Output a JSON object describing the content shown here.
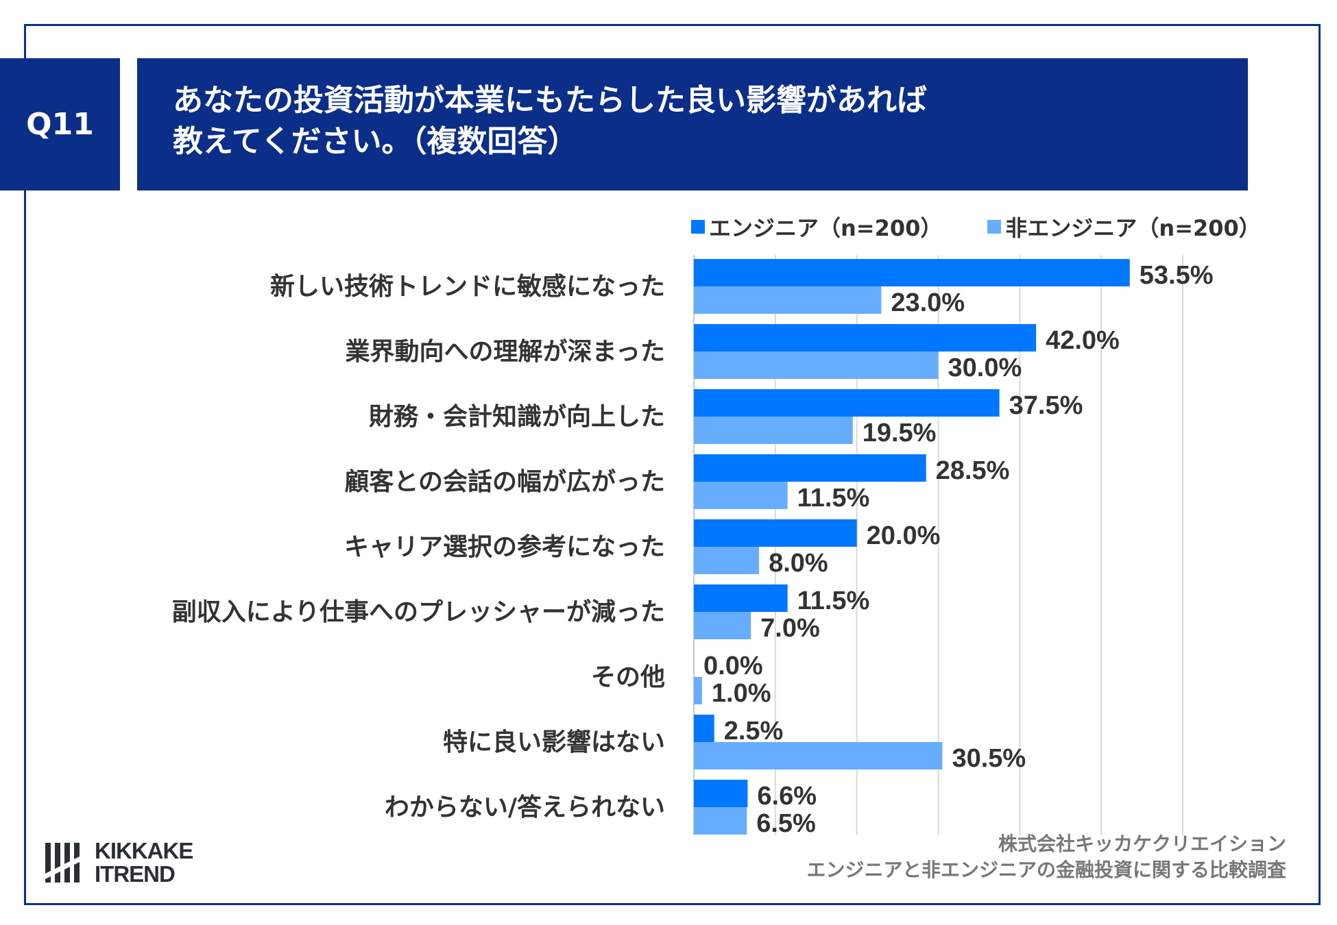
{
  "question_id": "Q11",
  "title": {
    "line1": "あなたの投資活動が本業にもたらした良い影響があれば",
    "line2": "教えてください。（複数回答）"
  },
  "colors": {
    "engineer": "#0077ff",
    "non_engineer": "#66adff",
    "header": "#0b2e88"
  },
  "chart_data": {
    "type": "bar",
    "orientation": "horizontal",
    "categories": [
      "新しい技術トレンドに敏感になった",
      "業界動向への理解が深まった",
      "財務・会計知識が向上した",
      "顧客との会話の幅が広がった",
      "キャリア選択の参考になった",
      "副収入により仕事へのプレッシャーが減った",
      "その他",
      "特に良い影響はない",
      "わからない/答えられない"
    ],
    "series": [
      {
        "name": "エンジニア（n=200）",
        "values": [
          53.5,
          42.0,
          37.5,
          28.5,
          20.0,
          11.5,
          0.0,
          2.5,
          6.6
        ],
        "labels": [
          "53.5%",
          "42.0%",
          "37.5%",
          "28.5%",
          "20.0%",
          "11.5%",
          "0.0%",
          "2.5%",
          "6.6%"
        ]
      },
      {
        "name": "非エンジニア（n=200）",
        "values": [
          23.0,
          30.0,
          19.5,
          11.5,
          8.0,
          7.0,
          1.0,
          30.5,
          6.5
        ],
        "labels": [
          "23.0%",
          "30.0%",
          "19.5%",
          "11.5%",
          "8.0%",
          "7.0%",
          "1.0%",
          "30.5%",
          "6.5%"
        ]
      }
    ],
    "xlim": [
      0,
      60
    ],
    "grid": true,
    "legend": "top-right"
  },
  "source": {
    "line1": "株式会社キッカケクリエイション",
    "line2": "エンジニアと非エンジニアの金融投資に関する比較調査"
  },
  "logo": {
    "line1": "KIKKAKE",
    "line2": "ITREND"
  }
}
